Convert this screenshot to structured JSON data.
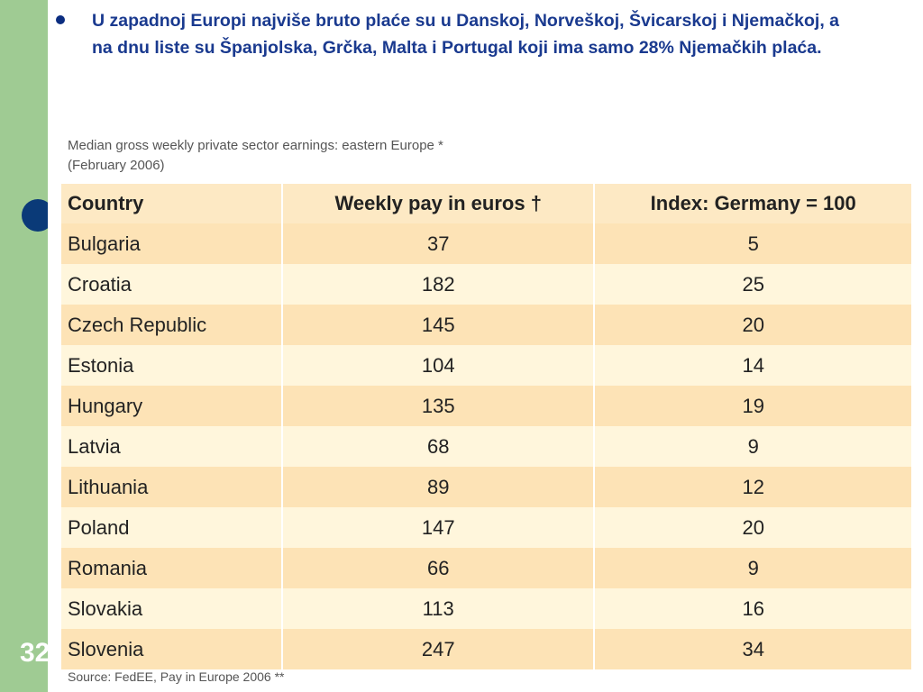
{
  "slide": {
    "number": "32",
    "bullet_text": "U zapadnoj Europi najviše bruto plaće su u Danskoj, Norveškoj, Švicarskoj i Njemačkoj, a na dnu liste su Španjolska, Grčka, Malta i Portugal koji ima samo 28% Njemačkih plaća.",
    "colors": {
      "sidebar": "#9fcb93",
      "bullet_text": "#1a3a8f",
      "header_row": "#fde9c4",
      "odd_row": "#fde3b6",
      "even_row": "#fff6dc"
    }
  },
  "figure": {
    "title_line1": "Median gross weekly private sector earnings: eastern Europe *",
    "title_line2": "(February 2006)",
    "source": "Source: FedEE, Pay in Europe 2006 **"
  },
  "chart_data": {
    "type": "table",
    "columns": [
      "Country",
      "Weekly pay in euros †",
      "Index: Germany = 100"
    ],
    "rows": [
      [
        "Bulgaria",
        "37",
        "5"
      ],
      [
        "Croatia",
        "182",
        "25"
      ],
      [
        "Czech Republic",
        "145",
        "20"
      ],
      [
        "Estonia",
        "104",
        "14"
      ],
      [
        "Hungary",
        "135",
        "19"
      ],
      [
        "Latvia",
        "68",
        "9"
      ],
      [
        "Lithuania",
        "89",
        "12"
      ],
      [
        "Poland",
        "147",
        "20"
      ],
      [
        "Romania",
        "66",
        "9"
      ],
      [
        "Slovakia",
        "113",
        "16"
      ],
      [
        "Slovenia",
        "247",
        "34"
      ]
    ]
  }
}
